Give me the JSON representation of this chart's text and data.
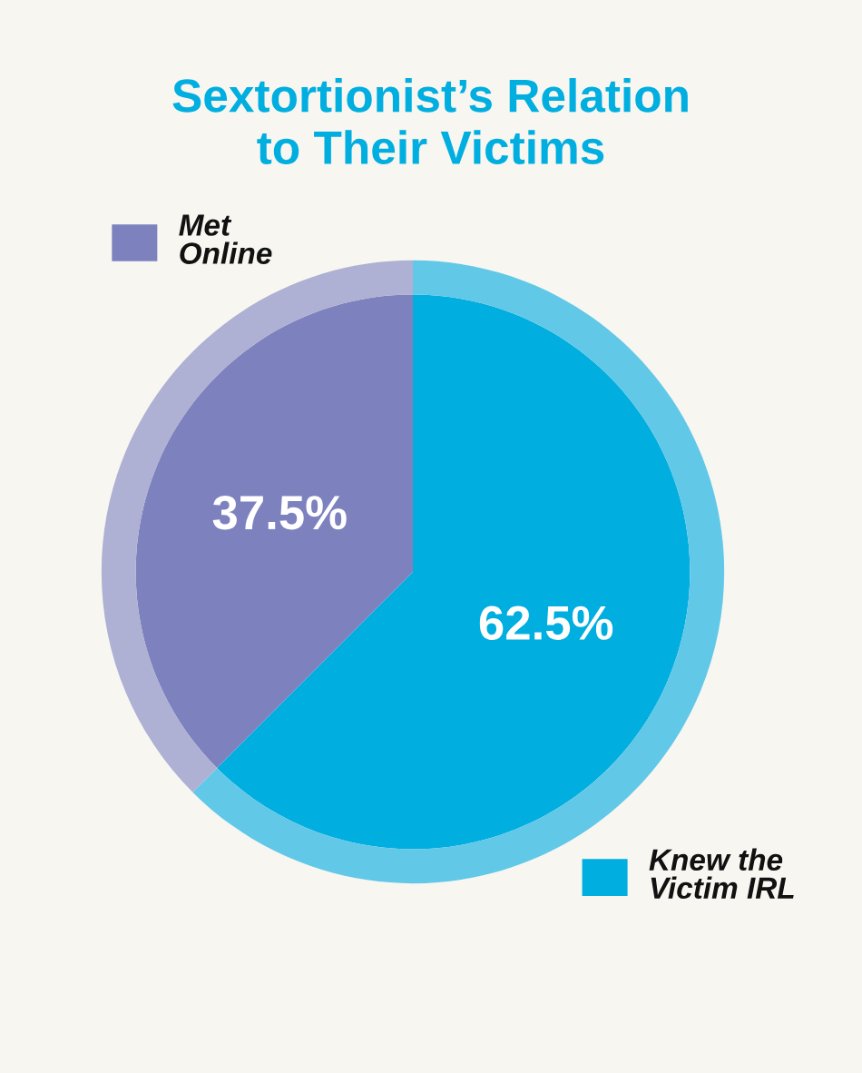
{
  "chart_data": {
    "type": "donut",
    "title": "Sextortionist’s Relation\nto Their Victims",
    "categories": [
      "Knew the\nVictim IRL",
      "Met\nOnline"
    ],
    "series": [
      {
        "colors": [
          "#62c8e8",
          "#aeb0d4"
        ],
        "values": [
          62.5,
          37.5
        ]
      },
      {
        "type": "pie",
        "colors": [
          "#00aee0",
          "#7d82bf"
        ],
        "values": [
          62.5,
          37.5
        ],
        "value_labels": [
          "62.5%",
          "37.5%"
        ]
      }
    ],
    "legend": "top right"
  }
}
